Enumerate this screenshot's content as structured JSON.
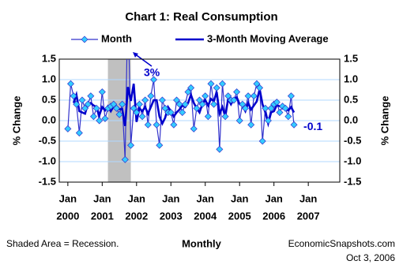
{
  "chart_data": {
    "type": "line",
    "title": "Chart 1: Real Consumption",
    "x": [
      "2000-01",
      "2000-02",
      "2000-03",
      "2000-04",
      "2000-05",
      "2000-06",
      "2000-07",
      "2000-08",
      "2000-09",
      "2000-10",
      "2000-11",
      "2000-12",
      "2001-01",
      "2001-02",
      "2001-03",
      "2001-04",
      "2001-05",
      "2001-06",
      "2001-07",
      "2001-08",
      "2001-09",
      "2001-10",
      "2001-11",
      "2001-12",
      "2002-01",
      "2002-02",
      "2002-03",
      "2002-04",
      "2002-05",
      "2002-06",
      "2002-07",
      "2002-08",
      "2002-09",
      "2002-10",
      "2002-11",
      "2002-12",
      "2003-01",
      "2003-02",
      "2003-03",
      "2003-04",
      "2003-05",
      "2003-06",
      "2003-07",
      "2003-08",
      "2003-09",
      "2003-10",
      "2003-11",
      "2003-12",
      "2004-01",
      "2004-02",
      "2004-03",
      "2004-04",
      "2004-05",
      "2004-06",
      "2004-07",
      "2004-08",
      "2004-09",
      "2004-10",
      "2004-11",
      "2004-12",
      "2005-01",
      "2005-02",
      "2005-03",
      "2005-04",
      "2005-05",
      "2005-06",
      "2005-07",
      "2005-08",
      "2005-09",
      "2005-10",
      "2005-11",
      "2005-12",
      "2006-01",
      "2006-02",
      "2006-03",
      "2006-04",
      "2006-05",
      "2006-06",
      "2006-07",
      "2006-08"
    ],
    "series": [
      {
        "name": "Month",
        "color": "#3333cc",
        "marker_color": "#33ccff",
        "values": [
          -0.2,
          0.9,
          0.6,
          0.4,
          -0.3,
          0.5,
          0.3,
          0.4,
          0.6,
          0.1,
          0.3,
          0.0,
          0.7,
          0.05,
          0.3,
          0.35,
          0.4,
          0.3,
          0.15,
          0.4,
          -0.95,
          3.0,
          -0.6,
          0.3,
          0.2,
          0.4,
          0.1,
          0.5,
          -0.1,
          0.6,
          1.0,
          -0.1,
          -0.6,
          0.5,
          0.3,
          0.2,
          0.2,
          -0.1,
          0.5,
          0.4,
          0.2,
          0.4,
          0.7,
          0.8,
          -0.2,
          0.3,
          0.5,
          0.4,
          0.6,
          0.1,
          0.9,
          0.4,
          0.8,
          -0.7,
          0.9,
          0.1,
          0.6,
          0.5,
          0.5,
          0.7,
          0.0,
          0.4,
          0.3,
          0.6,
          -0.1,
          0.6,
          0.9,
          0.8,
          -0.5,
          0.3,
          0.0,
          0.3,
          0.4,
          0.45,
          0.2,
          0.35,
          0.3,
          0.1,
          0.6,
          -0.1
        ]
      },
      {
        "name": "3-Month Moving Average",
        "color": "#0000cc",
        "values": [
          null,
          null,
          0.43,
          0.63,
          0.23,
          0.2,
          0.17,
          0.4,
          0.43,
          0.37,
          0.33,
          0.13,
          0.33,
          0.25,
          0.35,
          0.23,
          0.35,
          0.35,
          0.28,
          0.28,
          -0.13,
          0.82,
          0.48,
          0.9,
          -0.03,
          0.3,
          0.23,
          0.33,
          0.17,
          0.33,
          0.5,
          0.5,
          0.1,
          -0.07,
          0.07,
          0.33,
          0.23,
          0.1,
          0.2,
          0.27,
          0.37,
          0.33,
          0.43,
          0.63,
          0.43,
          0.3,
          0.2,
          0.4,
          0.5,
          0.37,
          0.53,
          0.47,
          0.7,
          0.17,
          0.33,
          0.1,
          0.53,
          0.4,
          0.53,
          0.57,
          0.4,
          0.37,
          0.23,
          0.43,
          0.27,
          0.37,
          0.47,
          0.77,
          0.4,
          0.2,
          -0.07,
          0.2,
          0.23,
          0.38,
          0.35,
          0.33,
          0.28,
          0.25,
          0.33,
          0.2
        ]
      }
    ],
    "xlim": [
      "1999-10",
      "2007-12"
    ],
    "xticks": [
      {
        "value": "2000-01",
        "label": "2000"
      },
      {
        "value": "2001-01",
        "label": "2001"
      },
      {
        "value": "2002-01",
        "label": "2002"
      },
      {
        "value": "2003-01",
        "label": "2003"
      },
      {
        "value": "2004-01",
        "label": "2004"
      },
      {
        "value": "2005-01",
        "label": "2005"
      },
      {
        "value": "2006-01",
        "label": "2006"
      },
      {
        "value": "2007-01",
        "label": "2007"
      }
    ],
    "xtick_month": "Jan",
    "ylim": [
      -1.5,
      1.5
    ],
    "yticks": [
      -1.5,
      {
        "value": -1.0,
        "label": "-1.0"
      },
      -0.5,
      {
        "value": 0.0,
        "label": "0.0"
      },
      0.5,
      {
        "value": 1.0,
        "label": "1.0"
      },
      1.5
    ],
    "ylabel": "% Change",
    "y2label": "% Change",
    "xlabel": "Monthly",
    "grid": true,
    "recession": [
      "2001-03",
      "2001-11"
    ],
    "recession_color": "#c0c0c0",
    "annotations": [
      "3%",
      "-0.1"
    ],
    "note": "Shaded Area = Recession.",
    "source": "EconomicSnapshots.com",
    "date": "Oct 3, 2006"
  }
}
